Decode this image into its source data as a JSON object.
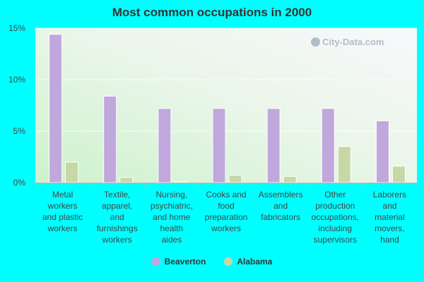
{
  "chart_data": {
    "type": "bar",
    "title": "Most common occupations in 2000",
    "categories": [
      [
        "Metal",
        "workers",
        "and plastic",
        "workers"
      ],
      [
        "Textile,",
        "apparel,",
        "and",
        "furnishings",
        "workers"
      ],
      [
        "Nursing,",
        "psychiatric,",
        "and home",
        "health",
        "aides"
      ],
      [
        "Cooks and",
        "food",
        "preparation",
        "workers"
      ],
      [
        "Assemblers",
        "and",
        "fabricators"
      ],
      [
        "Other",
        "production",
        "occupations,",
        "including",
        "supervisors"
      ],
      [
        "Laborers",
        "and",
        "material",
        "movers,",
        "hand"
      ]
    ],
    "series": [
      {
        "name": "Beaverton",
        "color": "#c0a8dc",
        "values": [
          14.4,
          8.4,
          7.2,
          7.2,
          7.2,
          7.2,
          6.0
        ]
      },
      {
        "name": "Alabama",
        "color": "#c6d8a6",
        "values": [
          2.0,
          0.5,
          0.1,
          0.7,
          0.6,
          3.5,
          1.6
        ]
      }
    ],
    "ylim": [
      0,
      15
    ],
    "yticks": [
      0,
      5,
      10,
      15
    ],
    "ytick_labels": [
      "0%",
      "5%",
      "10%",
      "15%"
    ],
    "grid": true,
    "legend_position": "bottom"
  },
  "watermark": {
    "text": "City-Data.com",
    "icon": "magnifier-icon"
  }
}
